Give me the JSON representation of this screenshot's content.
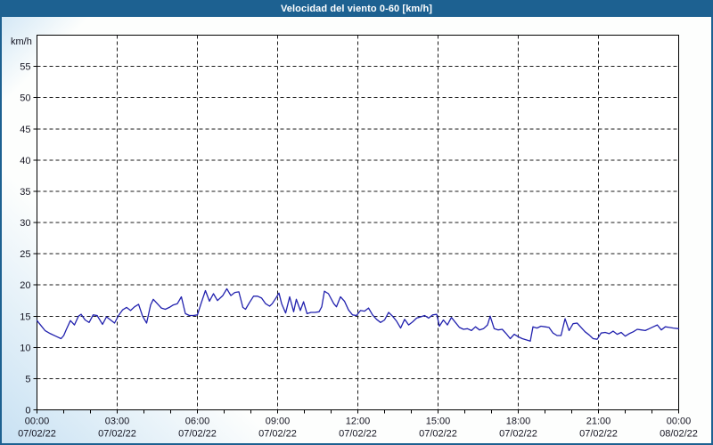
{
  "header": {
    "title": "Velocidad del viento 0-60 [km/h]",
    "background_color": "#1d6191",
    "text_color": "#ffffff"
  },
  "colors": {
    "frame_border": "#1d6191",
    "margin_tint": "#cde4f4",
    "plot_background": "#ffffff",
    "plot_border": "#000000",
    "grid_color": "#1a1a1a",
    "label_color": "#131320",
    "series_color": "#2121ae"
  },
  "chart_data": {
    "type": "line",
    "title": "Velocidad del viento 0-60 [km/h]",
    "ylabel": "km/h",
    "xlabel": "",
    "ylim": [
      0,
      60
    ],
    "xlim_hours": [
      0,
      24
    ],
    "grid": {
      "enabled": true,
      "style": "dashed",
      "y_step": 5,
      "x_step_hours": 3
    },
    "y_ticks": [
      0,
      5,
      10,
      15,
      20,
      25,
      30,
      35,
      40,
      45,
      50,
      55
    ],
    "x_minor_tick_every_hours": 1,
    "x_ticks": [
      {
        "hour": 0,
        "time": "00:00",
        "date": "07/02/22"
      },
      {
        "hour": 3,
        "time": "03:00",
        "date": "07/02/22"
      },
      {
        "hour": 6,
        "time": "06:00",
        "date": "07/02/22"
      },
      {
        "hour": 9,
        "time": "09:00",
        "date": "07/02/22"
      },
      {
        "hour": 12,
        "time": "12:00",
        "date": "07/02/22"
      },
      {
        "hour": 15,
        "time": "15:00",
        "date": "07/02/22"
      },
      {
        "hour": 18,
        "time": "18:00",
        "date": "07/02/22"
      },
      {
        "hour": 21,
        "time": "21:00",
        "date": "07/02/22"
      },
      {
        "hour": 24,
        "time": "00:00",
        "date": "08/02/22"
      }
    ],
    "legend": {
      "visible": false
    },
    "series": [
      {
        "name": "Velocidad del viento [km/h]",
        "color": "#2121ae",
        "points": [
          [
            0.0,
            14.3
          ],
          [
            0.15,
            13.5
          ],
          [
            0.3,
            12.7
          ],
          [
            0.5,
            12.2
          ],
          [
            0.7,
            11.8
          ],
          [
            0.9,
            11.4
          ],
          [
            1.0,
            11.9
          ],
          [
            1.1,
            12.9
          ],
          [
            1.25,
            14.3
          ],
          [
            1.4,
            13.6
          ],
          [
            1.55,
            15.0
          ],
          [
            1.65,
            15.3
          ],
          [
            1.8,
            14.4
          ],
          [
            1.95,
            14.0
          ],
          [
            2.1,
            15.2
          ],
          [
            2.25,
            15.1
          ],
          [
            2.45,
            13.7
          ],
          [
            2.6,
            14.9
          ],
          [
            2.75,
            14.4
          ],
          [
            2.9,
            13.9
          ],
          [
            3.05,
            15.1
          ],
          [
            3.2,
            16.0
          ],
          [
            3.35,
            16.4
          ],
          [
            3.5,
            15.9
          ],
          [
            3.65,
            16.5
          ],
          [
            3.8,
            16.9
          ],
          [
            3.95,
            15.0
          ],
          [
            4.1,
            13.9
          ],
          [
            4.25,
            16.8
          ],
          [
            4.35,
            17.7
          ],
          [
            4.5,
            17.0
          ],
          [
            4.65,
            16.3
          ],
          [
            4.8,
            16.1
          ],
          [
            4.95,
            16.4
          ],
          [
            5.1,
            16.8
          ],
          [
            5.25,
            17.0
          ],
          [
            5.4,
            18.1
          ],
          [
            5.55,
            15.4
          ],
          [
            5.7,
            15.1
          ],
          [
            5.85,
            15.1
          ],
          [
            6.0,
            15.2
          ],
          [
            6.15,
            17.2
          ],
          [
            6.3,
            19.1
          ],
          [
            6.45,
            17.4
          ],
          [
            6.6,
            18.6
          ],
          [
            6.75,
            17.5
          ],
          [
            6.95,
            18.3
          ],
          [
            7.1,
            19.4
          ],
          [
            7.25,
            18.3
          ],
          [
            7.4,
            18.8
          ],
          [
            7.55,
            18.9
          ],
          [
            7.7,
            16.4
          ],
          [
            7.8,
            16.1
          ],
          [
            7.95,
            17.2
          ],
          [
            8.1,
            18.2
          ],
          [
            8.25,
            18.2
          ],
          [
            8.4,
            17.9
          ],
          [
            8.55,
            17.0
          ],
          [
            8.7,
            16.6
          ],
          [
            8.8,
            17.0
          ],
          [
            8.95,
            18.0
          ],
          [
            9.05,
            18.7
          ],
          [
            9.15,
            17.0
          ],
          [
            9.3,
            15.5
          ],
          [
            9.45,
            18.1
          ],
          [
            9.6,
            15.7
          ],
          [
            9.7,
            17.7
          ],
          [
            9.85,
            15.9
          ],
          [
            9.97,
            17.3
          ],
          [
            10.1,
            15.4
          ],
          [
            10.25,
            15.6
          ],
          [
            10.4,
            15.6
          ],
          [
            10.55,
            15.7
          ],
          [
            10.65,
            16.5
          ],
          [
            10.75,
            19.0
          ],
          [
            10.9,
            18.6
          ],
          [
            11.1,
            17.0
          ],
          [
            11.2,
            16.5
          ],
          [
            11.35,
            18.1
          ],
          [
            11.5,
            17.4
          ],
          [
            11.65,
            16.0
          ],
          [
            11.8,
            15.2
          ],
          [
            11.95,
            15.1
          ],
          [
            12.1,
            15.9
          ],
          [
            12.25,
            15.8
          ],
          [
            12.4,
            16.3
          ],
          [
            12.55,
            15.2
          ],
          [
            12.7,
            14.5
          ],
          [
            12.85,
            14.0
          ],
          [
            13.0,
            14.4
          ],
          [
            13.15,
            15.6
          ],
          [
            13.3,
            15.0
          ],
          [
            13.45,
            14.2
          ],
          [
            13.6,
            13.1
          ],
          [
            13.75,
            14.5
          ],
          [
            13.9,
            13.6
          ],
          [
            14.05,
            14.1
          ],
          [
            14.2,
            14.7
          ],
          [
            14.35,
            14.9
          ],
          [
            14.5,
            15.1
          ],
          [
            14.65,
            14.7
          ],
          [
            14.8,
            15.2
          ],
          [
            14.95,
            15.3
          ],
          [
            15.05,
            13.4
          ],
          [
            15.2,
            14.4
          ],
          [
            15.35,
            13.6
          ],
          [
            15.5,
            14.8
          ],
          [
            15.65,
            14.0
          ],
          [
            15.8,
            13.2
          ],
          [
            15.95,
            12.9
          ],
          [
            16.1,
            13.0
          ],
          [
            16.25,
            12.7
          ],
          [
            16.4,
            13.3
          ],
          [
            16.55,
            12.8
          ],
          [
            16.7,
            13.0
          ],
          [
            16.85,
            13.6
          ],
          [
            16.95,
            15.0
          ],
          [
            17.1,
            13.0
          ],
          [
            17.25,
            12.8
          ],
          [
            17.4,
            12.9
          ],
          [
            17.55,
            12.2
          ],
          [
            17.7,
            11.4
          ],
          [
            17.85,
            12.1
          ],
          [
            18.0,
            11.7
          ],
          [
            18.15,
            11.4
          ],
          [
            18.3,
            11.2
          ],
          [
            18.45,
            11.0
          ],
          [
            18.55,
            13.3
          ],
          [
            18.7,
            13.1
          ],
          [
            18.85,
            13.4
          ],
          [
            19.0,
            13.3
          ],
          [
            19.15,
            13.2
          ],
          [
            19.3,
            12.3
          ],
          [
            19.45,
            11.9
          ],
          [
            19.6,
            11.9
          ],
          [
            19.75,
            14.6
          ],
          [
            19.9,
            12.7
          ],
          [
            20.05,
            13.8
          ],
          [
            20.2,
            13.9
          ],
          [
            20.35,
            13.2
          ],
          [
            20.5,
            12.5
          ],
          [
            20.65,
            12.0
          ],
          [
            20.8,
            11.4
          ],
          [
            20.95,
            11.3
          ],
          [
            21.1,
            12.3
          ],
          [
            21.25,
            12.4
          ],
          [
            21.4,
            12.2
          ],
          [
            21.55,
            12.6
          ],
          [
            21.7,
            12.1
          ],
          [
            21.85,
            12.4
          ],
          [
            22.0,
            11.8
          ],
          [
            22.15,
            12.2
          ],
          [
            22.3,
            12.5
          ],
          [
            22.45,
            12.9
          ],
          [
            22.6,
            12.8
          ],
          [
            22.75,
            12.7
          ],
          [
            22.9,
            13.0
          ],
          [
            23.05,
            13.3
          ],
          [
            23.2,
            13.6
          ],
          [
            23.35,
            12.8
          ],
          [
            23.5,
            13.3
          ],
          [
            23.65,
            13.2
          ],
          [
            23.8,
            13.1
          ],
          [
            24.0,
            13.0
          ]
        ]
      }
    ]
  }
}
